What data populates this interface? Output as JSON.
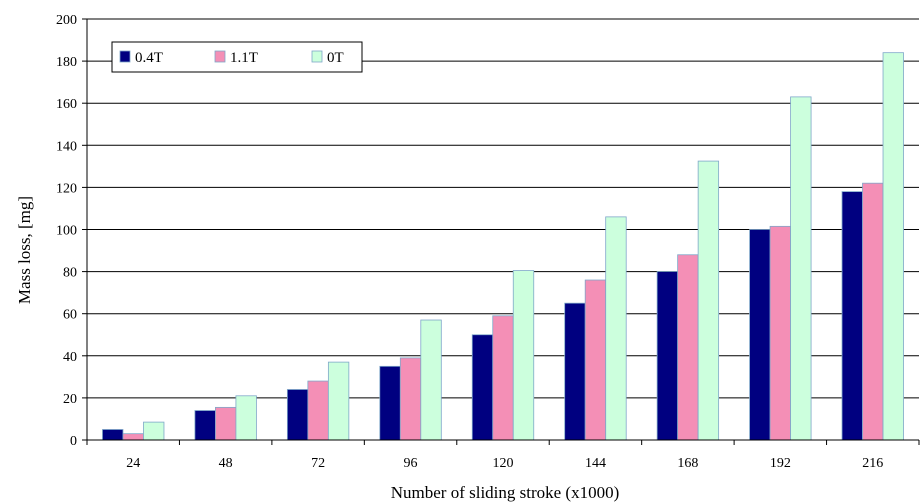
{
  "chart_data": {
    "type": "bar",
    "title": "",
    "xlabel": "Number of sliding stroke (x1000)",
    "ylabel": "Mass loss, [mg]",
    "categories": [
      "24",
      "48",
      "72",
      "96",
      "120",
      "144",
      "168",
      "192",
      "216"
    ],
    "series": [
      {
        "name": "0.4T",
        "values": [
          5,
          14,
          24,
          35,
          50,
          65,
          80,
          100,
          118
        ],
        "color": "#000080"
      },
      {
        "name": "1.1T",
        "values": [
          3,
          15.5,
          28,
          39,
          59,
          76,
          88,
          101.5,
          122
        ],
        "color": "#f48fb6"
      },
      {
        "name": "0T",
        "values": [
          8.5,
          21,
          37,
          57,
          80.5,
          106,
          132.5,
          163,
          184
        ],
        "color": "#ccffdd"
      }
    ],
    "bar_stroke": "#7fa7c9",
    "ylim": [
      0,
      200
    ],
    "yticks": [
      0,
      20,
      40,
      60,
      80,
      100,
      120,
      140,
      160,
      180,
      200
    ],
    "grid": true,
    "legend_position": "top-left"
  }
}
